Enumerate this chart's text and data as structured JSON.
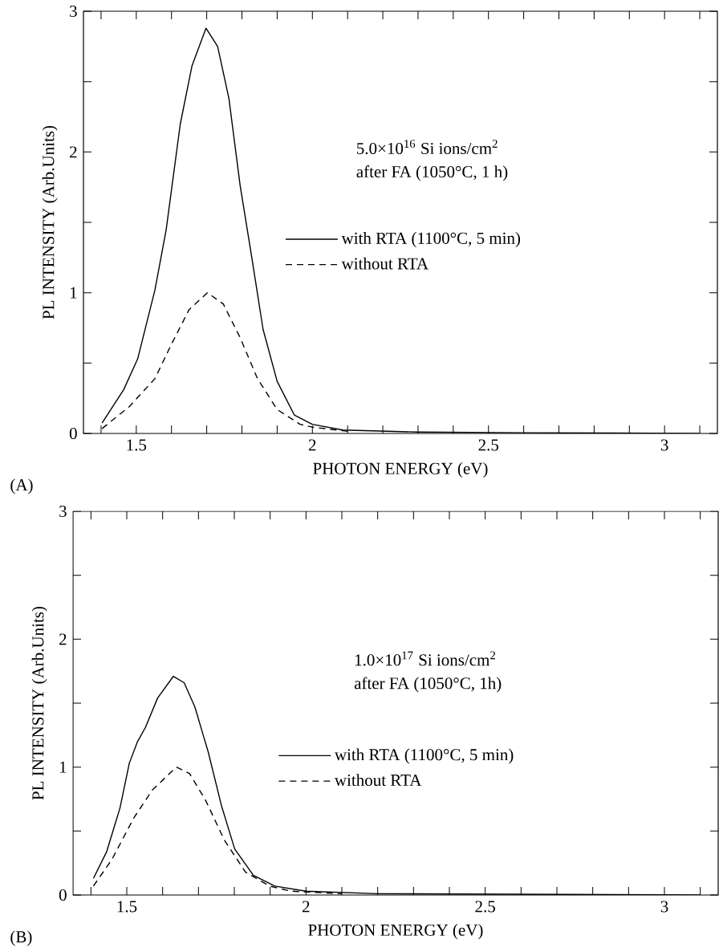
{
  "chart_data": [
    {
      "type": "line",
      "xlabel": "PHOTON ENERGY (eV)",
      "ylabel": "PL INTENSITY (Arb.Units)",
      "annotations": [
        "5.0×10$^{16}$ Si ions/cm$^{2}$",
        "after FA (1050°C, 1 h)",
        "(A)"
      ],
      "xlim": [
        1.35,
        3.15
      ],
      "ylim": [
        0,
        3
      ],
      "xticks": [
        {
          "value": 1.4,
          "label": null
        },
        1.5,
        {
          "value": 1.6,
          "label": null
        },
        {
          "value": 1.7,
          "label": null
        },
        {
          "value": 1.8,
          "label": null
        },
        {
          "value": 1.9,
          "label": null
        },
        2,
        {
          "value": 2.1,
          "label": null
        },
        {
          "value": 2.2,
          "label": null
        },
        {
          "value": 2.3,
          "label": null
        },
        {
          "value": 2.4,
          "label": null
        },
        2.5,
        {
          "value": 2.6,
          "label": null
        },
        {
          "value": 2.7,
          "label": null
        },
        {
          "value": 2.8,
          "label": null
        },
        {
          "value": 2.9,
          "label": null
        },
        3,
        {
          "value": 3.1,
          "label": null
        }
      ],
      "yticks": [
        0,
        {
          "value": 0.5,
          "label": null
        },
        1,
        {
          "value": 1.5,
          "label": null
        },
        2,
        {
          "value": 2.5,
          "label": null
        },
        3
      ],
      "legend": "right",
      "grid": false,
      "marker": "none",
      "series": [
        {
          "name": "with RTA (1100°C, 5 min)",
          "color": "#000000",
          "line_style": "solid",
          "x": [
            1.403,
            1.464,
            1.504,
            1.553,
            1.585,
            1.625,
            1.658,
            1.698,
            1.731,
            1.763,
            1.795,
            1.828,
            1.86,
            1.9,
            1.949,
            2.0,
            2.087,
            2.3,
            2.6,
            3.1
          ],
          "values": [
            0.075,
            0.31,
            0.53,
            1.02,
            1.45,
            2.2,
            2.61,
            2.88,
            2.75,
            2.38,
            1.76,
            1.25,
            0.74,
            0.37,
            0.13,
            0.065,
            0.024,
            0.01,
            0.005,
            0
          ]
        },
        {
          "name": "without RTA",
          "color": "#000000",
          "line_style": "dashed",
          "x": [
            1.403,
            1.48,
            1.553,
            1.601,
            1.65,
            1.702,
            1.747,
            1.795,
            1.844,
            1.9,
            1.965,
            2.0,
            2.1
          ],
          "values": [
            0.035,
            0.19,
            0.39,
            0.64,
            0.88,
            1.0,
            0.92,
            0.68,
            0.39,
            0.17,
            0.065,
            0.045,
            0.015
          ]
        }
      ]
    },
    {
      "type": "line",
      "xlabel": "PHOTON ENERGY (eV)",
      "ylabel": "PL INTENSITY (Arb.Units)",
      "annotations": [
        "1.0×10$^{17}$ Si ions/cm$^{2}$",
        "after FA (1050°C, 1h)",
        "(B)"
      ],
      "xlim": [
        1.35,
        3.15
      ],
      "ylim": [
        0,
        3
      ],
      "xticks": [
        {
          "value": 1.4,
          "label": null
        },
        1.5,
        {
          "value": 1.6,
          "label": null
        },
        {
          "value": 1.7,
          "label": null
        },
        {
          "value": 1.8,
          "label": null
        },
        {
          "value": 1.9,
          "label": null
        },
        2,
        {
          "value": 2.1,
          "label": null
        },
        {
          "value": 2.2,
          "label": null
        },
        {
          "value": 2.3,
          "label": null
        },
        {
          "value": 2.4,
          "label": null
        },
        2.5,
        {
          "value": 2.6,
          "label": null
        },
        {
          "value": 2.7,
          "label": null
        },
        {
          "value": 2.8,
          "label": null
        },
        {
          "value": 2.9,
          "label": null
        },
        3,
        {
          "value": 3.1,
          "label": null
        }
      ],
      "yticks": [
        0,
        {
          "value": 0.5,
          "label": null
        },
        1,
        {
          "value": 1.5,
          "label": null
        },
        2,
        {
          "value": 2.5,
          "label": null
        },
        3
      ],
      "legend": "right",
      "grid": false,
      "marker": "none",
      "series": [
        {
          "name": "with RTA (1100°C, 5 min)",
          "color": "#000000",
          "line_style": "solid",
          "x": [
            1.407,
            1.444,
            1.481,
            1.507,
            1.53,
            1.552,
            1.586,
            1.63,
            1.66,
            1.69,
            1.727,
            1.764,
            1.801,
            1.853,
            1.913,
            2.0,
            2.2,
            3.1
          ],
          "values": [
            0.13,
            0.34,
            0.68,
            1.03,
            1.2,
            1.31,
            1.54,
            1.71,
            1.66,
            1.47,
            1.12,
            0.7,
            0.36,
            0.155,
            0.07,
            0.03,
            0.01,
            0
          ]
        },
        {
          "name": "without RTA",
          "color": "#000000",
          "line_style": "dashed",
          "x": [
            1.407,
            1.459,
            1.519,
            1.571,
            1.638,
            1.675,
            1.72,
            1.772,
            1.831,
            1.898,
            1.958,
            2.1
          ],
          "values": [
            0.07,
            0.28,
            0.6,
            0.82,
            1.0,
            0.95,
            0.74,
            0.43,
            0.18,
            0.07,
            0.03,
            0.01
          ]
        }
      ]
    }
  ]
}
